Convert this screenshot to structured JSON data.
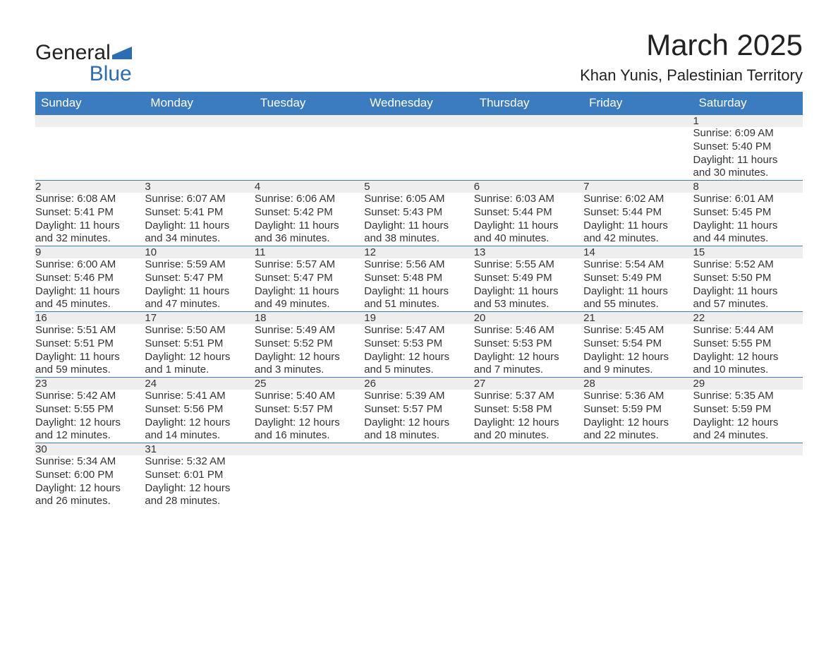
{
  "logo": {
    "word1": "General",
    "word2": "Blue"
  },
  "title": "March 2025",
  "location": "Khan Yunis, Palestinian Territory",
  "colors": {
    "header_bg": "#3b7bbf",
    "header_text": "#ffffff",
    "daynum_bg": "#eeeeee",
    "row_border": "#3b7bbf",
    "text": "#333333",
    "logo_blue": "#2a6db4"
  },
  "days_of_week": [
    "Sunday",
    "Monday",
    "Tuesday",
    "Wednesday",
    "Thursday",
    "Friday",
    "Saturday"
  ],
  "weeks": [
    [
      null,
      null,
      null,
      null,
      null,
      null,
      {
        "n": "1",
        "sr": "Sunrise: 6:09 AM",
        "ss": "Sunset: 5:40 PM",
        "dl1": "Daylight: 11 hours",
        "dl2": "and 30 minutes."
      }
    ],
    [
      {
        "n": "2",
        "sr": "Sunrise: 6:08 AM",
        "ss": "Sunset: 5:41 PM",
        "dl1": "Daylight: 11 hours",
        "dl2": "and 32 minutes."
      },
      {
        "n": "3",
        "sr": "Sunrise: 6:07 AM",
        "ss": "Sunset: 5:41 PM",
        "dl1": "Daylight: 11 hours",
        "dl2": "and 34 minutes."
      },
      {
        "n": "4",
        "sr": "Sunrise: 6:06 AM",
        "ss": "Sunset: 5:42 PM",
        "dl1": "Daylight: 11 hours",
        "dl2": "and 36 minutes."
      },
      {
        "n": "5",
        "sr": "Sunrise: 6:05 AM",
        "ss": "Sunset: 5:43 PM",
        "dl1": "Daylight: 11 hours",
        "dl2": "and 38 minutes."
      },
      {
        "n": "6",
        "sr": "Sunrise: 6:03 AM",
        "ss": "Sunset: 5:44 PM",
        "dl1": "Daylight: 11 hours",
        "dl2": "and 40 minutes."
      },
      {
        "n": "7",
        "sr": "Sunrise: 6:02 AM",
        "ss": "Sunset: 5:44 PM",
        "dl1": "Daylight: 11 hours",
        "dl2": "and 42 minutes."
      },
      {
        "n": "8",
        "sr": "Sunrise: 6:01 AM",
        "ss": "Sunset: 5:45 PM",
        "dl1": "Daylight: 11 hours",
        "dl2": "and 44 minutes."
      }
    ],
    [
      {
        "n": "9",
        "sr": "Sunrise: 6:00 AM",
        "ss": "Sunset: 5:46 PM",
        "dl1": "Daylight: 11 hours",
        "dl2": "and 45 minutes."
      },
      {
        "n": "10",
        "sr": "Sunrise: 5:59 AM",
        "ss": "Sunset: 5:47 PM",
        "dl1": "Daylight: 11 hours",
        "dl2": "and 47 minutes."
      },
      {
        "n": "11",
        "sr": "Sunrise: 5:57 AM",
        "ss": "Sunset: 5:47 PM",
        "dl1": "Daylight: 11 hours",
        "dl2": "and 49 minutes."
      },
      {
        "n": "12",
        "sr": "Sunrise: 5:56 AM",
        "ss": "Sunset: 5:48 PM",
        "dl1": "Daylight: 11 hours",
        "dl2": "and 51 minutes."
      },
      {
        "n": "13",
        "sr": "Sunrise: 5:55 AM",
        "ss": "Sunset: 5:49 PM",
        "dl1": "Daylight: 11 hours",
        "dl2": "and 53 minutes."
      },
      {
        "n": "14",
        "sr": "Sunrise: 5:54 AM",
        "ss": "Sunset: 5:49 PM",
        "dl1": "Daylight: 11 hours",
        "dl2": "and 55 minutes."
      },
      {
        "n": "15",
        "sr": "Sunrise: 5:52 AM",
        "ss": "Sunset: 5:50 PM",
        "dl1": "Daylight: 11 hours",
        "dl2": "and 57 minutes."
      }
    ],
    [
      {
        "n": "16",
        "sr": "Sunrise: 5:51 AM",
        "ss": "Sunset: 5:51 PM",
        "dl1": "Daylight: 11 hours",
        "dl2": "and 59 minutes."
      },
      {
        "n": "17",
        "sr": "Sunrise: 5:50 AM",
        "ss": "Sunset: 5:51 PM",
        "dl1": "Daylight: 12 hours",
        "dl2": "and 1 minute."
      },
      {
        "n": "18",
        "sr": "Sunrise: 5:49 AM",
        "ss": "Sunset: 5:52 PM",
        "dl1": "Daylight: 12 hours",
        "dl2": "and 3 minutes."
      },
      {
        "n": "19",
        "sr": "Sunrise: 5:47 AM",
        "ss": "Sunset: 5:53 PM",
        "dl1": "Daylight: 12 hours",
        "dl2": "and 5 minutes."
      },
      {
        "n": "20",
        "sr": "Sunrise: 5:46 AM",
        "ss": "Sunset: 5:53 PM",
        "dl1": "Daylight: 12 hours",
        "dl2": "and 7 minutes."
      },
      {
        "n": "21",
        "sr": "Sunrise: 5:45 AM",
        "ss": "Sunset: 5:54 PM",
        "dl1": "Daylight: 12 hours",
        "dl2": "and 9 minutes."
      },
      {
        "n": "22",
        "sr": "Sunrise: 5:44 AM",
        "ss": "Sunset: 5:55 PM",
        "dl1": "Daylight: 12 hours",
        "dl2": "and 10 minutes."
      }
    ],
    [
      {
        "n": "23",
        "sr": "Sunrise: 5:42 AM",
        "ss": "Sunset: 5:55 PM",
        "dl1": "Daylight: 12 hours",
        "dl2": "and 12 minutes."
      },
      {
        "n": "24",
        "sr": "Sunrise: 5:41 AM",
        "ss": "Sunset: 5:56 PM",
        "dl1": "Daylight: 12 hours",
        "dl2": "and 14 minutes."
      },
      {
        "n": "25",
        "sr": "Sunrise: 5:40 AM",
        "ss": "Sunset: 5:57 PM",
        "dl1": "Daylight: 12 hours",
        "dl2": "and 16 minutes."
      },
      {
        "n": "26",
        "sr": "Sunrise: 5:39 AM",
        "ss": "Sunset: 5:57 PM",
        "dl1": "Daylight: 12 hours",
        "dl2": "and 18 minutes."
      },
      {
        "n": "27",
        "sr": "Sunrise: 5:37 AM",
        "ss": "Sunset: 5:58 PM",
        "dl1": "Daylight: 12 hours",
        "dl2": "and 20 minutes."
      },
      {
        "n": "28",
        "sr": "Sunrise: 5:36 AM",
        "ss": "Sunset: 5:59 PM",
        "dl1": "Daylight: 12 hours",
        "dl2": "and 22 minutes."
      },
      {
        "n": "29",
        "sr": "Sunrise: 5:35 AM",
        "ss": "Sunset: 5:59 PM",
        "dl1": "Daylight: 12 hours",
        "dl2": "and 24 minutes."
      }
    ],
    [
      {
        "n": "30",
        "sr": "Sunrise: 5:34 AM",
        "ss": "Sunset: 6:00 PM",
        "dl1": "Daylight: 12 hours",
        "dl2": "and 26 minutes."
      },
      {
        "n": "31",
        "sr": "Sunrise: 5:32 AM",
        "ss": "Sunset: 6:01 PM",
        "dl1": "Daylight: 12 hours",
        "dl2": "and 28 minutes."
      },
      null,
      null,
      null,
      null,
      null
    ]
  ]
}
